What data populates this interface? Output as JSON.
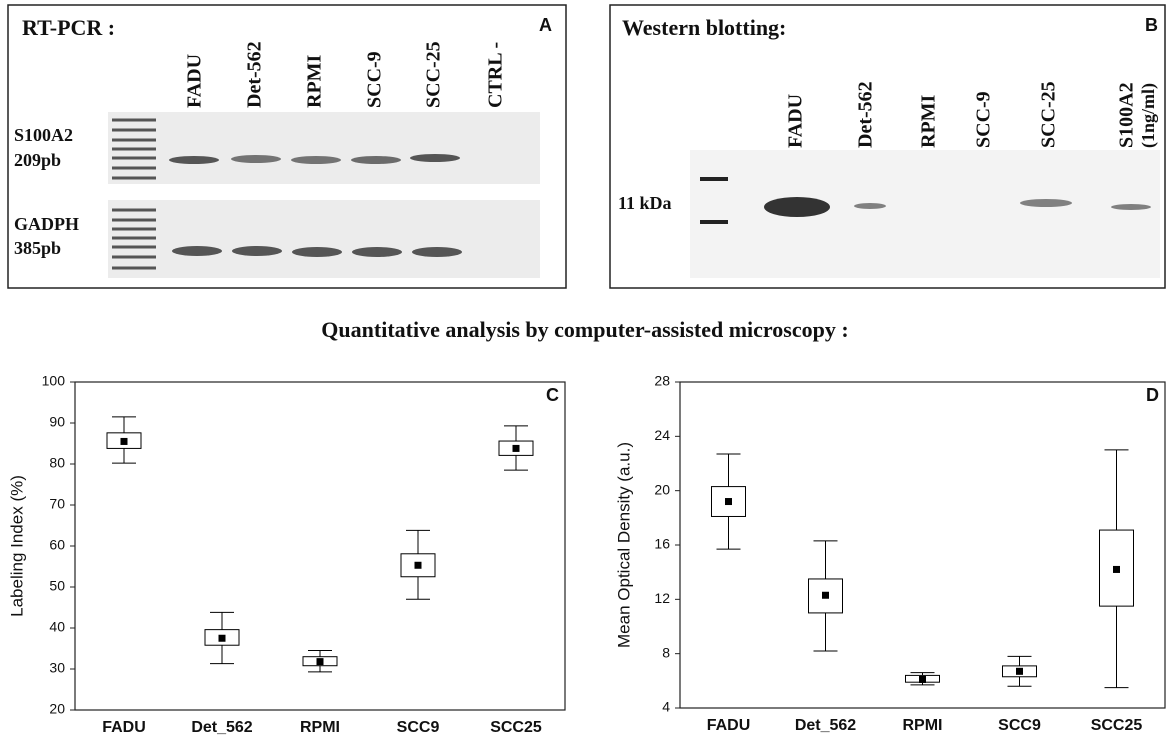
{
  "heading": "Quantitative analysis by computer-assisted microscopy :",
  "panel_a": {
    "title": "RT-PCR :",
    "letter": "A",
    "lanes": [
      "FADU",
      "Det-562",
      "RPMI",
      "SCC-9",
      "SCC-25",
      "CTRL -"
    ],
    "rows": [
      [
        "S100A2",
        "209pb"
      ],
      [
        "GADPH",
        "385pb"
      ]
    ]
  },
  "panel_b": {
    "title": "Western blotting:",
    "letter": "B",
    "lanes": [
      "FADU",
      "Det-562",
      "RPMI",
      "SCC-9",
      "SCC-25",
      "S100A2"
    ],
    "lane_note": "(1ng/ml)",
    "marker": "11 kDa"
  },
  "chart_data": [
    {
      "type": "box",
      "letter": "C",
      "ylabel": "Labeling Index (%)",
      "categories": [
        "FADU",
        "Det_562",
        "RPMI",
        "SCC9",
        "SCC25"
      ],
      "mean": [
        85.5,
        37.5,
        31.8,
        55.3,
        83.8
      ],
      "box_low": [
        83.8,
        35.8,
        30.8,
        52.5,
        82.1
      ],
      "box_high": [
        87.6,
        39.6,
        33.0,
        58.1,
        85.6
      ],
      "whisker_low": [
        80.2,
        31.3,
        29.3,
        47.0,
        78.5
      ],
      "whisker_high": [
        91.5,
        43.8,
        34.5,
        63.8,
        89.3
      ],
      "ylim": [
        20,
        100
      ],
      "yticks": [
        20,
        30,
        40,
        50,
        60,
        70,
        80,
        90,
        100
      ],
      "color": "#000000"
    },
    {
      "type": "box",
      "letter": "D",
      "ylabel": "Mean Optical Density (a.u.)",
      "categories": [
        "FADU",
        "Det_562",
        "RPMI",
        "SCC9",
        "SCC25"
      ],
      "mean": [
        19.2,
        12.3,
        6.1,
        6.7,
        14.2
      ],
      "box_low": [
        18.1,
        11.0,
        5.9,
        6.3,
        11.5
      ],
      "box_high": [
        20.3,
        13.5,
        6.4,
        7.1,
        17.1
      ],
      "whisker_low": [
        15.7,
        8.2,
        5.7,
        5.6,
        5.5
      ],
      "whisker_high": [
        22.7,
        16.3,
        6.6,
        7.8,
        23.0
      ],
      "ylim": [
        4,
        28
      ],
      "yticks": [
        4,
        8,
        12,
        16,
        20,
        24,
        28
      ],
      "color": "#000000"
    }
  ]
}
